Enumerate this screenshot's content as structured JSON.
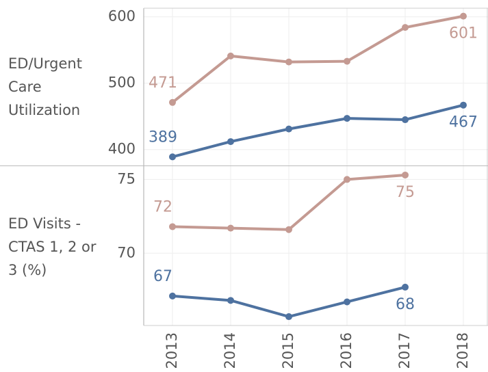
{
  "chart_data": [
    {
      "type": "line",
      "title": "ED/Urgent Care Utilization",
      "series": [
        {
          "color": "#c49a92",
          "values": [
            471,
            541,
            532,
            533,
            584,
            601
          ],
          "value_labels": [
            "471",
            null,
            null,
            null,
            null,
            "601"
          ]
        },
        {
          "color": "#4e72a0",
          "values": [
            389,
            412,
            431,
            447,
            445,
            467
          ],
          "value_labels": [
            "389",
            null,
            null,
            null,
            null,
            "467"
          ]
        }
      ],
      "ylim": [
        376,
        613
      ],
      "yticks": [
        400,
        500,
        600
      ],
      "grid": true
    },
    {
      "type": "line",
      "title": "ED Visits - CTAS 1, 2 or 3 (%)",
      "categories": [
        "2013",
        "2014",
        "2015",
        "2016",
        "2017",
        "2018"
      ],
      "series": [
        {
          "color": "#c49a92",
          "values": [
            71.8,
            71.7,
            71.6,
            75.0,
            75.3,
            null
          ],
          "value_labels": [
            "72",
            null,
            null,
            null,
            "75",
            null
          ]
        },
        {
          "color": "#4e72a0",
          "values": [
            67.1,
            66.8,
            65.7,
            66.7,
            67.7,
            null
          ],
          "value_labels": [
            "67",
            null,
            null,
            null,
            "68",
            null
          ]
        }
      ],
      "ylim": [
        65.1,
        75.9
      ],
      "yticks": [
        70,
        75
      ],
      "grid": true
    }
  ]
}
